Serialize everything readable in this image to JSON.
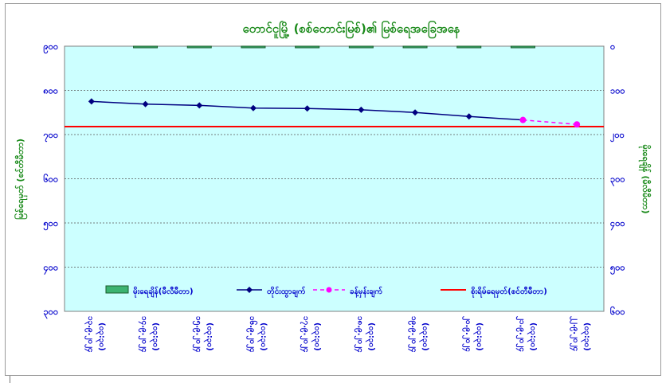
{
  "chart_data": {
    "type": "line",
    "title": "တောင်ငူမြို့ (စစ်တောင်းမြစ်)၏ မြစ်ရေအခြေအနေ",
    "ylabel_left": "မြစ်ရေမှတ် (စင်တီမီတာ)",
    "ylabel_right": "မိုးရေချိန် (မီလီမီတာ)",
    "categories": [
      [
        "၁၃.၉.၂၀၂၄",
        "(၀၃:၃၀)"
      ],
      [
        "၁၄.၉.၂၀၂၄",
        "(၀၃:၃၀)"
      ],
      [
        "၁၅.၉.၂၀၂၄",
        "(၀၃:၃၀)"
      ],
      [
        "၁၆.၉.၂၀၂၄",
        "(၀၃:၃၀)"
      ],
      [
        "၁၇.၉.၂၀၂၄",
        "(၀၃:၃၀)"
      ],
      [
        "၁၈.၉.၂၀၂၄",
        "(၀၃:၃၀)"
      ],
      [
        "၁၉.၉.၂၀၂၄",
        "(၀၃:၃၀)"
      ],
      [
        "၂၀.၉.၂၀၂၄",
        "(၀၃:၃၀)"
      ],
      [
        "၂၁.၉.၂၀၂၄",
        "(၀၃:၃၀)"
      ],
      [
        "၂၂.၉.၂၀၂၄",
        "(၀၃:၃၀)"
      ]
    ],
    "y_left_ticks": [
      "၉၀၀",
      "၈၀၀",
      "၇၀၀",
      "၆၀၀",
      "၅၀၀",
      "၄၀၀",
      "၃၀၀"
    ],
    "y_right_ticks": [
      "၀",
      "၁၀၀",
      "၂၀၀",
      "၃၀၀",
      "၄၀၀",
      "၅၀၀",
      "၆၀၀"
    ],
    "ylim_left": [
      300,
      900
    ],
    "ylim_right": [
      0,
      600
    ],
    "series": [
      {
        "name": "မိုးရေချိန်(မီလီမီတာ)",
        "type": "bar",
        "axis": "right",
        "color": "#3cb371",
        "values": [
          0,
          1,
          2,
          1,
          3,
          3,
          2,
          3,
          1,
          0
        ]
      },
      {
        "name": "တိုင်းထွာချက်",
        "type": "line",
        "axis": "left",
        "color": "#000080",
        "values": [
          775,
          769,
          766,
          760,
          759,
          756,
          750,
          741,
          733,
          null
        ]
      },
      {
        "name": "ခန့်မှန်းချက်",
        "type": "line",
        "dashed": true,
        "axis": "left",
        "color": "#ff00ff",
        "values": [
          null,
          null,
          null,
          null,
          null,
          null,
          null,
          null,
          733,
          723
        ]
      },
      {
        "name": "စိုးရိမ်ရေမှတ်(စင်တီမီတာ)",
        "type": "hline",
        "axis": "left",
        "color": "#ff0000",
        "value": 718
      }
    ],
    "background": "#ccffff",
    "grid": true,
    "legend_position": "bottom-inside"
  }
}
